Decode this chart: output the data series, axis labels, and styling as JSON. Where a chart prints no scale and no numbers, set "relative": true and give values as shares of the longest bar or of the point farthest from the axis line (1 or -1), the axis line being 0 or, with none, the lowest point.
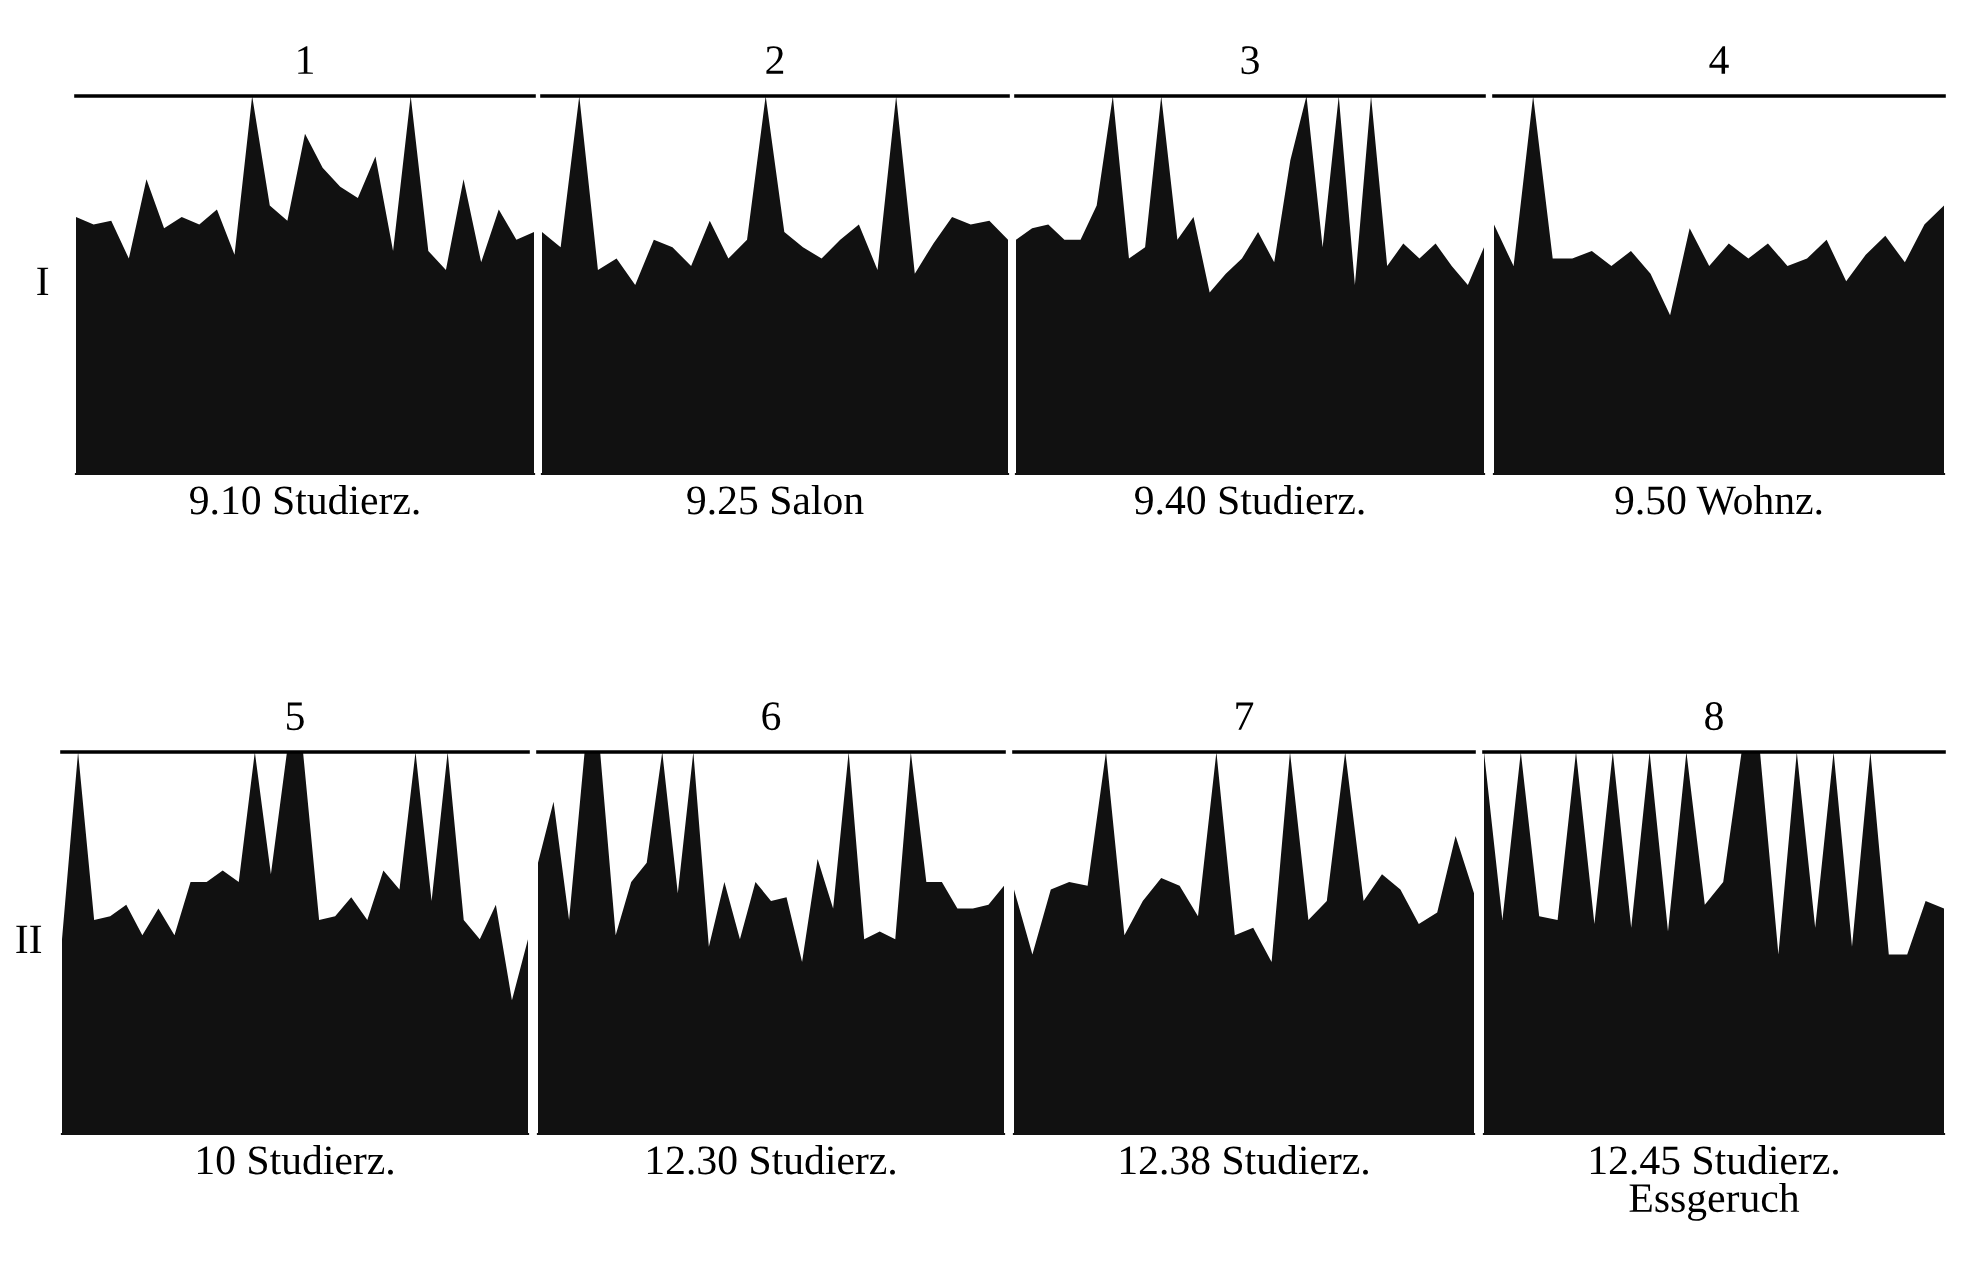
{
  "chart_data": [
    {
      "type": "area",
      "relative": true,
      "title": "1",
      "xlabel": "9.10 Studierz.",
      "ylabel": "I",
      "color": "#111111",
      "categories": [
        null,
        null,
        null,
        null,
        null,
        null,
        null,
        null,
        null,
        null,
        null,
        null,
        null,
        null,
        null,
        null,
        null,
        null,
        null,
        null,
        null,
        null,
        null,
        null,
        null,
        null,
        null
      ],
      "values": [
        0.68,
        0.66,
        0.67,
        0.57,
        0.78,
        0.65,
        0.68,
        0.66,
        0.7,
        0.58,
        1,
        0.71,
        0.67,
        0.9,
        0.81,
        0.76,
        0.73,
        0.84,
        0.59,
        1,
        0.59,
        0.54,
        0.78,
        0.56,
        0.7,
        0.62,
        0.64
      ]
    },
    {
      "type": "area",
      "relative": true,
      "title": "2",
      "xlabel": "9.25 Salon",
      "color": "#111111",
      "categories": [
        null,
        null,
        null,
        null,
        null,
        null,
        null,
        null,
        null,
        null,
        null,
        null,
        null,
        null,
        null,
        null,
        null,
        null,
        null,
        null,
        null,
        null,
        null,
        null,
        null,
        null
      ],
      "values": [
        0.64,
        0.6,
        1,
        0.54,
        0.57,
        0.5,
        0.62,
        0.6,
        0.55,
        0.67,
        0.57,
        0.62,
        1,
        0.64,
        0.6,
        0.57,
        0.62,
        0.66,
        0.54,
        1,
        0.53,
        0.61,
        0.68,
        0.66,
        0.67,
        0.62
      ]
    },
    {
      "type": "area",
      "relative": true,
      "title": "3",
      "xlabel": "9.40 Studierz.",
      "color": "#111111",
      "categories": [
        null,
        null,
        null,
        null,
        null,
        null,
        null,
        null,
        null,
        null,
        null,
        null,
        null,
        null,
        null,
        null,
        null,
        null,
        null,
        null,
        null,
        null,
        null,
        null,
        null,
        null,
        null,
        null,
        null,
        null
      ],
      "values": [
        0.62,
        0.65,
        0.66,
        0.62,
        0.62,
        0.71,
        1,
        0.57,
        0.6,
        1,
        0.62,
        0.68,
        0.48,
        0.53,
        0.57,
        0.64,
        0.56,
        0.83,
        1,
        0.6,
        1,
        0.5,
        1,
        0.55,
        0.61,
        0.57,
        0.61,
        0.55,
        0.5,
        0.6
      ]
    },
    {
      "type": "area",
      "relative": true,
      "title": "4",
      "xlabel": "9.50 Wohnz.",
      "color": "#111111",
      "categories": [
        null,
        null,
        null,
        null,
        null,
        null,
        null,
        null,
        null,
        null,
        null,
        null,
        null,
        null,
        null,
        null,
        null,
        null,
        null,
        null,
        null,
        null,
        null,
        null
      ],
      "values": [
        0.66,
        0.55,
        1,
        0.57,
        0.57,
        0.59,
        0.55,
        0.59,
        0.53,
        0.42,
        0.65,
        0.55,
        0.61,
        0.57,
        0.61,
        0.55,
        0.57,
        0.62,
        0.51,
        0.58,
        0.63,
        0.56,
        0.66,
        0.71
      ]
    },
    {
      "type": "area",
      "relative": true,
      "title": "5",
      "xlabel": "10 Studierz.",
      "ylabel": "II",
      "color": "#111111",
      "categories": [
        null,
        null,
        null,
        null,
        null,
        null,
        null,
        null,
        null,
        null,
        null,
        null,
        null,
        null,
        null,
        null,
        null,
        null,
        null,
        null,
        null,
        null,
        null,
        null,
        null,
        null,
        null,
        null,
        null,
        null
      ],
      "values": [
        0.51,
        1,
        0.56,
        0.57,
        0.6,
        0.52,
        0.59,
        0.52,
        0.66,
        0.66,
        0.69,
        0.66,
        1,
        0.68,
        1,
        1,
        0.56,
        0.57,
        0.62,
        0.56,
        0.69,
        0.64,
        1,
        0.61,
        1,
        0.56,
        0.51,
        0.6,
        0.35,
        0.51
      ]
    },
    {
      "type": "area",
      "relative": true,
      "title": "6",
      "xlabel": "12.30 Studierz.",
      "color": "#111111",
      "categories": [
        null,
        null,
        null,
        null,
        null,
        null,
        null,
        null,
        null,
        null,
        null,
        null,
        null,
        null,
        null,
        null,
        null,
        null,
        null,
        null,
        null,
        null,
        null,
        null,
        null,
        null,
        null,
        null,
        null,
        null,
        null
      ],
      "values": [
        0.71,
        0.87,
        0.56,
        1,
        1,
        0.52,
        0.66,
        0.71,
        1,
        0.63,
        1,
        0.49,
        0.66,
        0.51,
        0.66,
        0.61,
        0.62,
        0.45,
        0.72,
        0.59,
        1,
        0.51,
        0.53,
        0.51,
        1,
        0.66,
        0.66,
        0.59,
        0.59,
        0.6,
        0.65
      ]
    },
    {
      "type": "area",
      "relative": true,
      "title": "7",
      "xlabel": "12.38 Studierz.",
      "color": "#111111",
      "categories": [
        null,
        null,
        null,
        null,
        null,
        null,
        null,
        null,
        null,
        null,
        null,
        null,
        null,
        null,
        null,
        null,
        null,
        null,
        null,
        null,
        null,
        null,
        null,
        null,
        null,
        null
      ],
      "values": [
        0.64,
        0.47,
        0.64,
        0.66,
        0.65,
        1,
        0.52,
        0.61,
        0.67,
        0.65,
        0.57,
        1,
        0.52,
        0.54,
        0.45,
        1,
        0.56,
        0.61,
        1,
        0.61,
        0.68,
        0.64,
        0.55,
        0.58,
        0.78,
        0.63
      ]
    },
    {
      "type": "area",
      "relative": true,
      "title": "8",
      "xlabel": "12.45 Studierz.\nEssgeruch",
      "color": "#111111",
      "categories": [
        null,
        null,
        null,
        null,
        null,
        null,
        null,
        null,
        null,
        null,
        null,
        null,
        null,
        null,
        null,
        null,
        null,
        null,
        null,
        null,
        null,
        null,
        null,
        null,
        null,
        null
      ],
      "values": [
        1,
        0.56,
        1,
        0.57,
        0.56,
        1,
        0.55,
        1,
        0.54,
        1,
        0.53,
        1,
        0.6,
        0.66,
        1,
        1,
        0.47,
        1,
        0.54,
        1,
        0.49,
        1,
        0.47,
        0.47,
        0.61,
        0.59
      ]
    }
  ]
}
